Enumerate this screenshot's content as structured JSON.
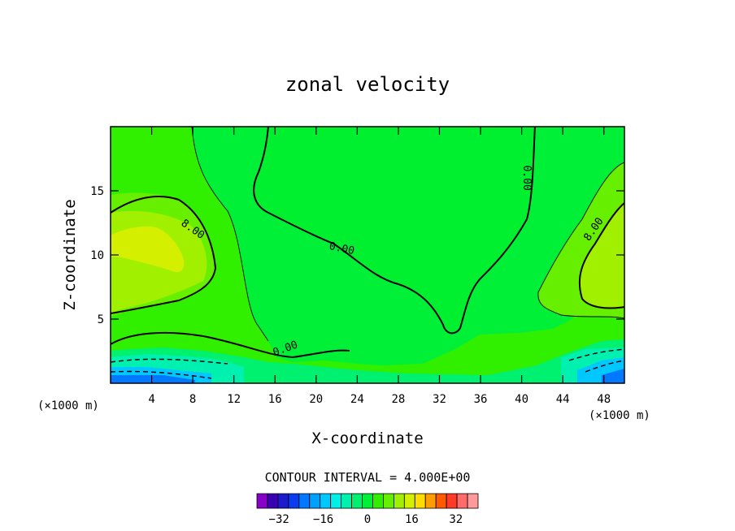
{
  "chart_data": {
    "type": "contour",
    "title": "zonal velocity",
    "xlabel": "X-coordinate",
    "ylabel": "Z-coordinate",
    "x_unit_label": "(×1000 m)",
    "y_unit_label": "(×1000 m)",
    "xlim": [
      0,
      50
    ],
    "ylim": [
      0,
      20
    ],
    "x_ticks": [
      4,
      8,
      12,
      16,
      20,
      24,
      28,
      32,
      36,
      40,
      44,
      48
    ],
    "y_ticks": [
      5,
      10,
      15
    ],
    "contour_interval_text": "CONTOUR INTERVAL = 4.000E+00",
    "contour_labels": [
      {
        "text": "8.00",
        "x": 8,
        "z": 12
      },
      {
        "text": "0.00",
        "x": 22.5,
        "z": 10.5
      },
      {
        "text": "0.00",
        "x": 40.5,
        "z": 16
      },
      {
        "text": "8.00",
        "x": 47,
        "z": 12
      },
      {
        "text": "0.00",
        "x": 17,
        "z": 2.7
      }
    ],
    "grid": false,
    "colorbar": {
      "levels": [
        -40,
        -36,
        -32,
        -28,
        -24,
        -20,
        -16,
        -12,
        -8,
        -4,
        0,
        4,
        8,
        12,
        16,
        20,
        24,
        28,
        32,
        36,
        40
      ],
      "colors": [
        "#8800c8",
        "#3a00b4",
        "#1c1ccc",
        "#0a3cf0",
        "#0078ff",
        "#00a0ff",
        "#00c8ff",
        "#00f0e8",
        "#00f0b0",
        "#00f070",
        "#00f038",
        "#30f000",
        "#66f000",
        "#a0f000",
        "#d4f000",
        "#ffdc00",
        "#ff9c00",
        "#ff5a00",
        "#ff3a28",
        "#ff6a6a",
        "#ff9a9a"
      ],
      "tick_labels": [
        "-32",
        "-16",
        "0",
        "16",
        "32"
      ],
      "tick_values": [
        -32,
        -16,
        0,
        16,
        32
      ]
    }
  }
}
